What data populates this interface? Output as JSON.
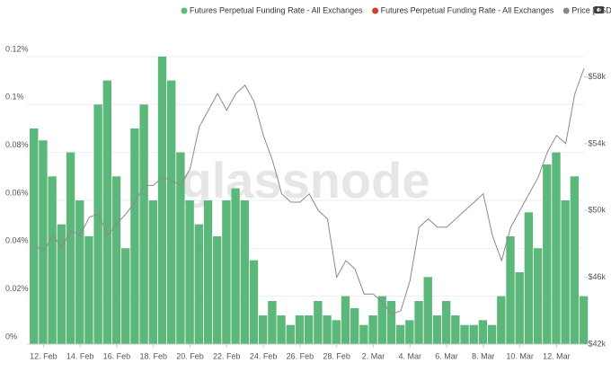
{
  "chart_data": {
    "type": "bar-line",
    "watermark": "glassnode",
    "x": [
      11.5,
      12,
      12.5,
      13,
      13.5,
      14,
      14.5,
      15,
      15.5,
      16,
      16.5,
      17,
      17.5,
      18,
      18.5,
      19,
      19.5,
      20,
      20.5,
      21,
      21.5,
      22,
      22.5,
      23,
      23.5,
      24,
      24.5,
      25,
      25.5,
      26,
      26.5,
      27,
      27.5,
      28,
      28.5,
      29,
      29.5,
      30,
      30.5,
      31,
      31.5,
      32,
      32.5,
      33,
      33.5,
      34,
      34.5,
      35,
      35.5,
      36,
      36.5,
      37,
      37.5,
      38,
      38.5,
      39,
      39.5,
      40,
      40.5,
      41,
      41.5
    ],
    "xlim": [
      11.1,
      41.5
    ],
    "xticks": [
      {
        "value": 12,
        "label": "12. Feb"
      },
      {
        "value": 14,
        "label": "14. Feb"
      },
      {
        "value": 16,
        "label": "16. Feb"
      },
      {
        "value": 18,
        "label": "18. Feb"
      },
      {
        "value": 20,
        "label": "20. Feb"
      },
      {
        "value": 22,
        "label": "22. Feb"
      },
      {
        "value": 24,
        "label": "24. Feb"
      },
      {
        "value": 26,
        "label": "26. Feb"
      },
      {
        "value": 28,
        "label": "28. Feb"
      },
      {
        "value": 30,
        "label": "2. Mar"
      },
      {
        "value": 32,
        "label": "4. Mar"
      },
      {
        "value": 34,
        "label": "6. Mar"
      },
      {
        "value": 36,
        "label": "8. Mar"
      },
      {
        "value": 38,
        "label": "10. Mar"
      },
      {
        "value": 40,
        "label": "12. Mar"
      }
    ],
    "ylim": [
      0,
      0.1286
    ],
    "yticks": [
      {
        "value": 0,
        "label": "0%"
      },
      {
        "value": 0.02,
        "label": "0.02%"
      },
      {
        "value": 0.04,
        "label": "0.04%"
      },
      {
        "value": 0.06,
        "label": "0.06%"
      },
      {
        "value": 0.08,
        "label": "0.08%"
      },
      {
        "value": 0.1,
        "label": "0.1%"
      },
      {
        "value": 0.12,
        "label": "0.12%"
      }
    ],
    "y2lim": [
      42000,
      60450
    ],
    "y2ticks": [
      {
        "value": 42000,
        "label": "$42k"
      },
      {
        "value": 46000,
        "label": "$46k"
      },
      {
        "value": 50000,
        "label": "$50k"
      },
      {
        "value": 54000,
        "label": "$54k"
      },
      {
        "value": 58000,
        "label": "$58k"
      }
    ],
    "grid": true,
    "series": [
      {
        "name": "Futures Perpetual Funding Rate - All Exchanges",
        "color": "#5cb87a",
        "kind": "bar",
        "values": [
          0.09,
          0.085,
          0.07,
          0.05,
          0.08,
          0.06,
          0.045,
          0.1,
          0.11,
          0.07,
          0.04,
          0.09,
          0.1,
          0.06,
          0.12,
          0.11,
          0.08,
          0.06,
          0.05,
          0.06,
          0.045,
          0.06,
          0.065,
          0.06,
          0.035,
          0.012,
          0.018,
          0.012,
          0.008,
          0.012,
          0.012,
          0.018,
          0.012,
          0.01,
          0.02,
          0.015,
          0.008,
          0.012,
          0.02,
          0.018,
          0.008,
          0.01,
          0.018,
          0.028,
          0.012,
          0.018,
          0.012,
          0.008,
          0.008,
          0.01,
          0.008,
          0.02,
          0.045,
          0.03,
          0.055,
          0.04,
          0.075,
          0.08,
          0.06,
          0.07,
          0.02
        ]
      },
      {
        "name": "Futures Perpetual Funding Rate - All Exchanges",
        "color": "#d93b2b",
        "kind": "bar",
        "values": [
          null,
          null,
          null,
          null,
          null,
          null,
          null,
          null,
          null,
          null,
          null,
          null,
          null,
          null,
          null,
          null,
          null,
          null,
          null,
          null,
          null,
          null,
          null,
          null,
          null,
          null,
          null,
          null,
          null,
          null,
          null,
          null,
          null,
          null,
          null,
          null,
          null,
          null,
          null,
          null,
          null,
          null,
          null,
          null,
          null,
          null,
          null,
          null,
          null,
          null,
          null,
          null,
          null,
          null,
          null,
          null,
          null,
          null,
          null,
          null,
          null
        ]
      },
      {
        "name": "Price [USD]",
        "color": "#8a8a8a",
        "kind": "line",
        "axis": "y2",
        "values": [
          48000,
          47500,
          48500,
          47800,
          48800,
          48500,
          49600,
          49800,
          48500,
          49200,
          49800,
          50500,
          51500,
          51500,
          52000,
          51800,
          51500,
          52500,
          55000,
          56000,
          57000,
          56000,
          57000,
          57500,
          56500,
          54500,
          53000,
          51000,
          50500,
          50500,
          51000,
          50000,
          49500,
          46000,
          47000,
          46500,
          45000,
          45000,
          44500,
          43800,
          44000,
          45800,
          49000,
          49500,
          49000,
          49000,
          49500,
          50000,
          50500,
          51000,
          48500,
          47000,
          49000,
          50000,
          51000,
          52000,
          53500,
          54500,
          54000,
          57000,
          58500
        ]
      }
    ]
  }
}
